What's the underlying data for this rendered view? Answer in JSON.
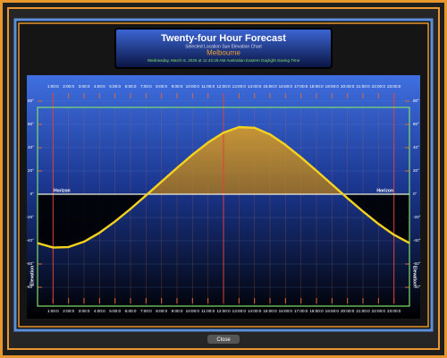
{
  "window": {
    "title": "Twenty-four Hour Forecast",
    "subtitle": "Selected Location Sun Elevation Chart",
    "location": "Melbourne",
    "timestamp": "Wednesday, March 5, 2025 at 11:42:29 AM Australian Eastern Daylight Saving Time",
    "close_button": "Close"
  },
  "chart_data": {
    "type": "line",
    "horizon_label": "Horizon",
    "y_label": "Elevation",
    "x": [
      0,
      1,
      2,
      3,
      4,
      5,
      6,
      7,
      8,
      9,
      10,
      11,
      12,
      13,
      14,
      15,
      16,
      17,
      18,
      19,
      20,
      21,
      22,
      23,
      24
    ],
    "values": [
      -42,
      -45.8,
      -45.4,
      -40.8,
      -33.1,
      -23.4,
      -12.6,
      -1,
      10.8,
      22.6,
      34,
      44.4,
      52.9,
      57.7,
      57.1,
      51.4,
      42.4,
      31.7,
      20.2,
      8.4,
      -3.4,
      -14.8,
      -25.5,
      -34.9,
      -42
    ],
    "color": "#f5d21e",
    "xlim": [
      0,
      24
    ],
    "ylim": [
      -90,
      90
    ],
    "xticks": [
      {
        "value": 1,
        "label": "1:00:0"
      },
      {
        "value": 2,
        "label": "2:00:0"
      },
      {
        "value": 3,
        "label": "3:00:0"
      },
      {
        "value": 4,
        "label": "4:00:0"
      },
      {
        "value": 5,
        "label": "5:00:0"
      },
      {
        "value": 6,
        "label": "6:00:0"
      },
      {
        "value": 7,
        "label": "7:00:0"
      },
      {
        "value": 8,
        "label": "8:00:0"
      },
      {
        "value": 9,
        "label": "9:00:0"
      },
      {
        "value": 10,
        "label": "10:00:0"
      },
      {
        "value": 11,
        "label": "11:00:0"
      },
      {
        "value": 12,
        "label": "12:00:0"
      },
      {
        "value": 13,
        "label": "13:00:0"
      },
      {
        "value": 14,
        "label": "14:00:0"
      },
      {
        "value": 15,
        "label": "15:00:0"
      },
      {
        "value": 16,
        "label": "16:00:0"
      },
      {
        "value": 17,
        "label": "17:00:0"
      },
      {
        "value": 18,
        "label": "18:00:0"
      },
      {
        "value": 19,
        "label": "19:00:0"
      },
      {
        "value": 20,
        "label": "20:00:0"
      },
      {
        "value": 21,
        "label": "21:00:0"
      },
      {
        "value": 22,
        "label": "22:00:0"
      },
      {
        "value": 23,
        "label": "23:00:0"
      }
    ],
    "yticks": [
      {
        "value": 80,
        "label": "80°"
      },
      {
        "value": 60,
        "label": "60°"
      },
      {
        "value": 40,
        "label": "40°"
      },
      {
        "value": 20,
        "label": "20°"
      },
      {
        "value": 0,
        "label": "0°"
      },
      {
        "value": -20,
        "label": "-20°"
      },
      {
        "value": -40,
        "label": "-40°"
      },
      {
        "value": -60,
        "label": "-60°"
      },
      {
        "value": -80,
        "label": "-80°"
      }
    ],
    "grid": true
  }
}
